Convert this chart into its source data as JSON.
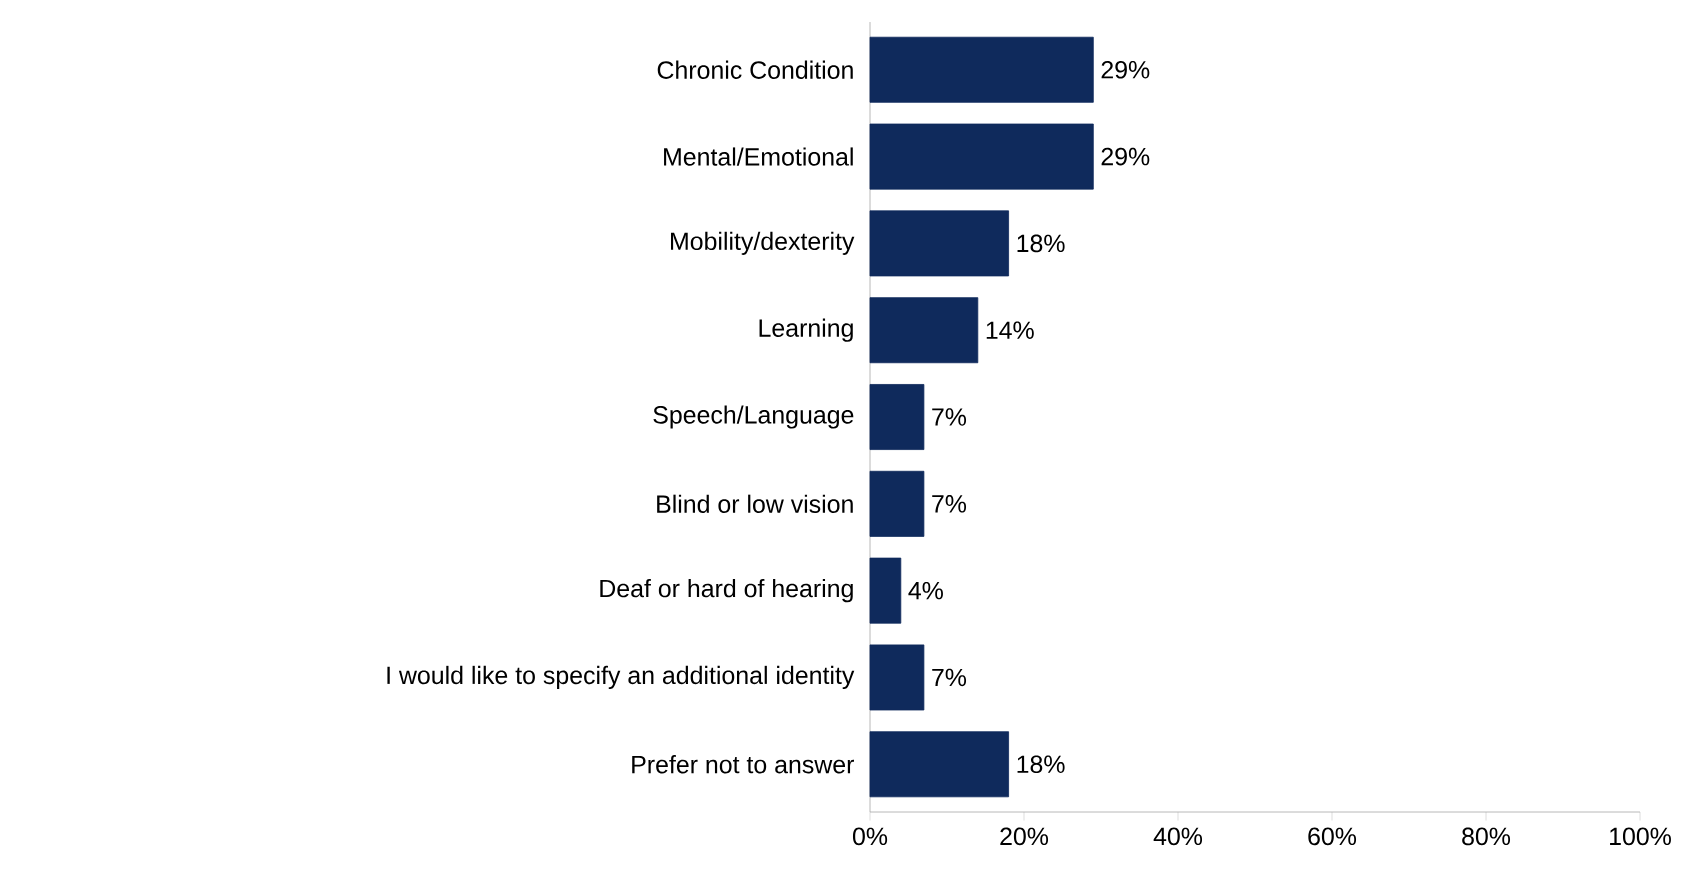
{
  "chart_data": {
    "type": "bar",
    "orientation": "horizontal",
    "categories": [
      "Chronic Condition",
      "Mental/Emotional",
      "Mobility/dexterity",
      "Learning",
      "Speech/Language",
      "Blind or low vision",
      "Deaf or hard of hearing",
      "I would like to specify an additional identity",
      "Prefer not to answer"
    ],
    "values": [
      29,
      29,
      18,
      14,
      7,
      7,
      4,
      7,
      18
    ],
    "value_labels": [
      "29%",
      "29%",
      "18%",
      "14%",
      "7%",
      "7%",
      "4%",
      "7%",
      "18%"
    ],
    "color": "#0f2a5c",
    "xlim": [
      0,
      100
    ],
    "xticks": [
      {
        "value": 0,
        "label": "0%"
      },
      {
        "value": 20,
        "label": "20%"
      },
      {
        "value": 40,
        "label": "40%"
      },
      {
        "value": 60,
        "label": "60%"
      },
      {
        "value": 80,
        "label": "80%"
      },
      {
        "value": 100,
        "label": "100%"
      }
    ],
    "grid": false
  }
}
